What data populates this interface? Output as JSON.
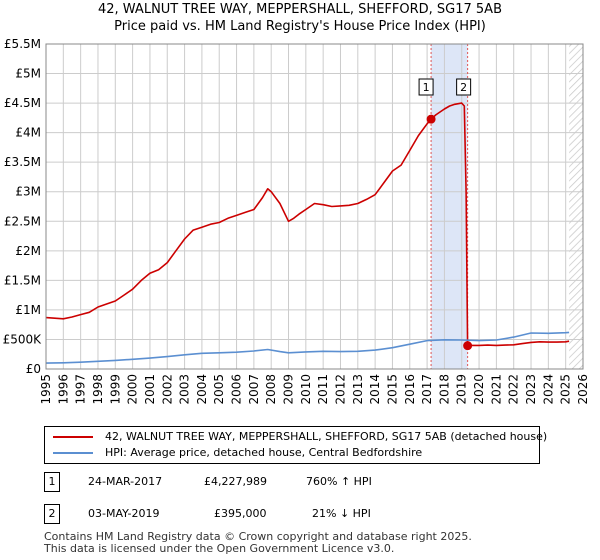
{
  "title": "42, WALNUT TREE WAY, MEPPERSHALL, SHEFFORD, SG17 5AB",
  "subtitle": "Price paid vs. HM Land Registry's House Price Index (HPI)",
  "colors": {
    "red": "#cc0000",
    "blue": "#5b8fd1",
    "highlight": "#dde6f7",
    "grid": "#cccccc"
  },
  "chart_data": {
    "type": "line",
    "title": "42, WALNUT TREE WAY, MEPPERSHALL, SHEFFORD, SG17 5AB",
    "subtitle": "Price paid vs. HM Land Registry's House Price Index (HPI)",
    "xlabel": "",
    "ylabel": "",
    "xlim": [
      1995,
      2026
    ],
    "ylim": [
      0,
      5500000
    ],
    "xticks": [
      "1995",
      "1996",
      "1997",
      "1998",
      "1999",
      "2000",
      "2001",
      "2002",
      "2003",
      "2004",
      "2005",
      "2006",
      "2007",
      "2008",
      "2009",
      "2010",
      "2011",
      "2012",
      "2013",
      "2014",
      "2015",
      "2016",
      "2017",
      "2018",
      "2019",
      "2020",
      "2021",
      "2022",
      "2023",
      "2024",
      "2025",
      "2026"
    ],
    "yticks": [
      {
        "value": 0,
        "label": "£0"
      },
      {
        "value": 500000,
        "label": "£500K"
      },
      {
        "value": 1000000,
        "label": "£1M"
      },
      {
        "value": 1500000,
        "label": "£1.5M"
      },
      {
        "value": 2000000,
        "label": "£2M"
      },
      {
        "value": 2500000,
        "label": "£2.5M"
      },
      {
        "value": 3000000,
        "label": "£3M"
      },
      {
        "value": 3500000,
        "label": "£3.5M"
      },
      {
        "value": 4000000,
        "label": "£4M"
      },
      {
        "value": 4500000,
        "label": "£4.5M"
      },
      {
        "value": 5000000,
        "label": "£5M"
      },
      {
        "value": 5500000,
        "label": "£5.5M"
      }
    ],
    "grid": true,
    "highlight_range": [
      2017.23,
      2019.34
    ],
    "forecast_start": 2025.2,
    "series": [
      {
        "name": "42, WALNUT TREE WAY, MEPPERSHALL, SHEFFORD, SG17 5AB (detached house)",
        "color": "#cc0000",
        "x": [
          1995,
          1995.5,
          1996,
          1996.5,
          1997,
          1997.5,
          1998,
          1998.5,
          1999,
          1999.5,
          2000,
          2000.5,
          2001,
          2001.5,
          2002,
          2002.5,
          2003,
          2003.5,
          2004,
          2004.5,
          2005,
          2005.5,
          2006,
          2006.5,
          2007,
          2007.5,
          2007.8,
          2008,
          2008.5,
          2009,
          2009.3,
          2009.6,
          2010,
          2010.5,
          2011,
          2011.5,
          2012,
          2012.5,
          2013,
          2013.5,
          2014,
          2014.5,
          2015,
          2015.5,
          2016,
          2016.5,
          2017,
          2017.23,
          2017.5,
          2018,
          2018.3,
          2018.6,
          2019,
          2019.15,
          2019.25,
          2019.34,
          2019.5,
          2020,
          2020.5,
          2021,
          2021.5,
          2022,
          2022.5,
          2023,
          2023.5,
          2024,
          2024.5,
          2025,
          2025.2
        ],
        "y": [
          870000,
          860000,
          850000,
          880000,
          920000,
          960000,
          1050000,
          1100000,
          1150000,
          1250000,
          1350000,
          1500000,
          1620000,
          1680000,
          1800000,
          2000000,
          2200000,
          2350000,
          2400000,
          2450000,
          2480000,
          2550000,
          2600000,
          2650000,
          2700000,
          2900000,
          3050000,
          3000000,
          2800000,
          2500000,
          2550000,
          2620000,
          2700000,
          2800000,
          2780000,
          2750000,
          2760000,
          2770000,
          2800000,
          2870000,
          2950000,
          3150000,
          3350000,
          3450000,
          3700000,
          3950000,
          4150000,
          4227989,
          4300000,
          4400000,
          4450000,
          4480000,
          4500000,
          4450000,
          3000000,
          395000,
          400000,
          400000,
          405000,
          400000,
          405000,
          410000,
          430000,
          450000,
          460000,
          455000,
          455000,
          460000,
          470000
        ]
      },
      {
        "name": "HPI: Average price, detached house, Central Bedfordshire",
        "color": "#5b8fd1",
        "x": [
          1995,
          1996,
          1997,
          1998,
          1999,
          2000,
          2001,
          2002,
          2003,
          2004,
          2005,
          2006,
          2007,
          2007.8,
          2008.5,
          2009,
          2010,
          2011,
          2012,
          2013,
          2014,
          2015,
          2016,
          2017,
          2018,
          2019,
          2020,
          2021,
          2022,
          2023,
          2024,
          2025,
          2025.2
        ],
        "y": [
          100000,
          105000,
          115000,
          130000,
          145000,
          165000,
          185000,
          210000,
          240000,
          265000,
          275000,
          285000,
          305000,
          330000,
          295000,
          275000,
          290000,
          300000,
          295000,
          300000,
          320000,
          360000,
          420000,
          480000,
          495000,
          490000,
          480000,
          490000,
          540000,
          610000,
          605000,
          615000,
          620000
        ]
      }
    ],
    "sales": [
      {
        "label": "1",
        "x": 2017.23,
        "y": 4227989
      },
      {
        "label": "2",
        "x": 2019.34,
        "y": 395000
      }
    ]
  },
  "legend": {
    "red_label": "42, WALNUT TREE WAY, MEPPERSHALL, SHEFFORD, SG17 5AB (detached house)",
    "blue_label": "HPI: Average price, detached house, Central Bedfordshire"
  },
  "transactions": [
    {
      "num": "1",
      "date": "24-MAR-2017",
      "price": "£4,227,989",
      "hpi": "760% ↑ HPI"
    },
    {
      "num": "2",
      "date": "03-MAY-2019",
      "price": "£395,000",
      "hpi": "21% ↓ HPI"
    }
  ],
  "footer": {
    "line1": "Contains HM Land Registry data © Crown copyright and database right 2025.",
    "line2": "This data is licensed under the Open Government Licence v3.0."
  }
}
